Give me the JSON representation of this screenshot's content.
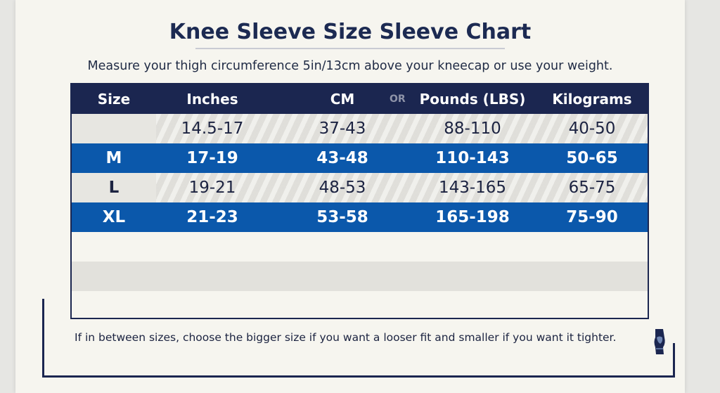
{
  "title": "Knee Sleeve Size Sleeve Chart",
  "subtitle": "Measure your thigh circumference 5in/13cm above your kneecap or use your weight.",
  "table": {
    "headers": {
      "size": "Size",
      "inches": "Inches",
      "cm": "CM",
      "or": "OR",
      "pounds": "Pounds (LBS)",
      "kilograms": "Kilograms"
    },
    "rows": [
      {
        "size": "",
        "inches": "14.5-17",
        "cm": "37-43",
        "pounds": "88-110",
        "kilograms": "40-50"
      },
      {
        "size": "M",
        "inches": "17-19",
        "cm": "43-48",
        "pounds": "110-143",
        "kilograms": "50-65"
      },
      {
        "size": "L",
        "inches": "19-21",
        "cm": "48-53",
        "pounds": "143-165",
        "kilograms": "65-75"
      },
      {
        "size": "XL",
        "inches": "21-23",
        "cm": "53-58",
        "pounds": "165-198",
        "kilograms": "75-90"
      }
    ]
  },
  "footnote": "If in between sizes, choose the bigger size if you want a looser fit and smaller if you want it tighter.",
  "icons": {
    "corner": "knee-sleeve-icon"
  },
  "colors": {
    "navy": "#1b2650",
    "blue": "#0b58ab",
    "paper": "#f6f5ef"
  }
}
